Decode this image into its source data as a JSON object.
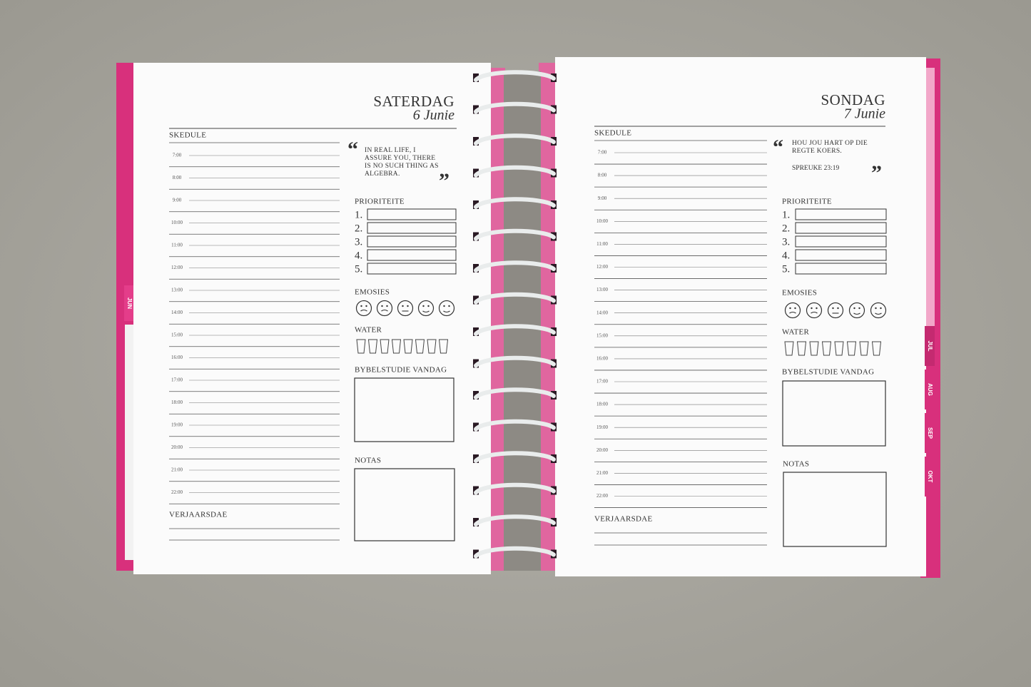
{
  "pages": [
    {
      "day": "SATERDAG",
      "date": "6 Junie",
      "schedule_label": "SKEDULE",
      "times": [
        "7:00",
        "8:00",
        "9:00",
        "10:00",
        "11:00",
        "12:00",
        "13:00",
        "14:00",
        "15:00",
        "16:00",
        "17:00",
        "18:00",
        "19:00",
        "20:00",
        "21:00",
        "22:00"
      ],
      "quote": "IN REAL LIFE, I ASSURE YOU, THERE IS NO SUCH THING AS ALGEBRA.",
      "priorities_label": "PRIORITEITE",
      "priorities": [
        "1.",
        "2.",
        "3.",
        "4.",
        "5."
      ],
      "emotions_label": "EMOSIES",
      "water_label": "WATER",
      "bible_label": "BYBELSTUDIE VANDAG",
      "notes_label": "NOTAS",
      "birthdays_label": "VERJAARSDAE"
    },
    {
      "day": "SONDAG",
      "date": "7 Junie",
      "schedule_label": "SKEDULE",
      "times": [
        "7:00",
        "8:00",
        "9:00",
        "10:00",
        "11:00",
        "12:00",
        "13:00",
        "14:00",
        "15:00",
        "16:00",
        "17:00",
        "18:00",
        "19:00",
        "20:00",
        "21:00",
        "22:00"
      ],
      "quote": "HOU JOU HART OP DIE REGTE KOERS.",
      "quote_source": "SPREUKE 23:19",
      "priorities_label": "PRIORITEITE",
      "priorities": [
        "1.",
        "2.",
        "3.",
        "4.",
        "5."
      ],
      "emotions_label": "EMOSIES",
      "water_label": "WATER",
      "bible_label": "BYBELSTUDIE VANDAG",
      "notes_label": "NOTAS",
      "birthdays_label": "VERJAARSDAE"
    }
  ],
  "tabs": {
    "left": [
      "JUN"
    ],
    "right": [
      "JUL",
      "AUG",
      "SEP",
      "OKT"
    ]
  }
}
